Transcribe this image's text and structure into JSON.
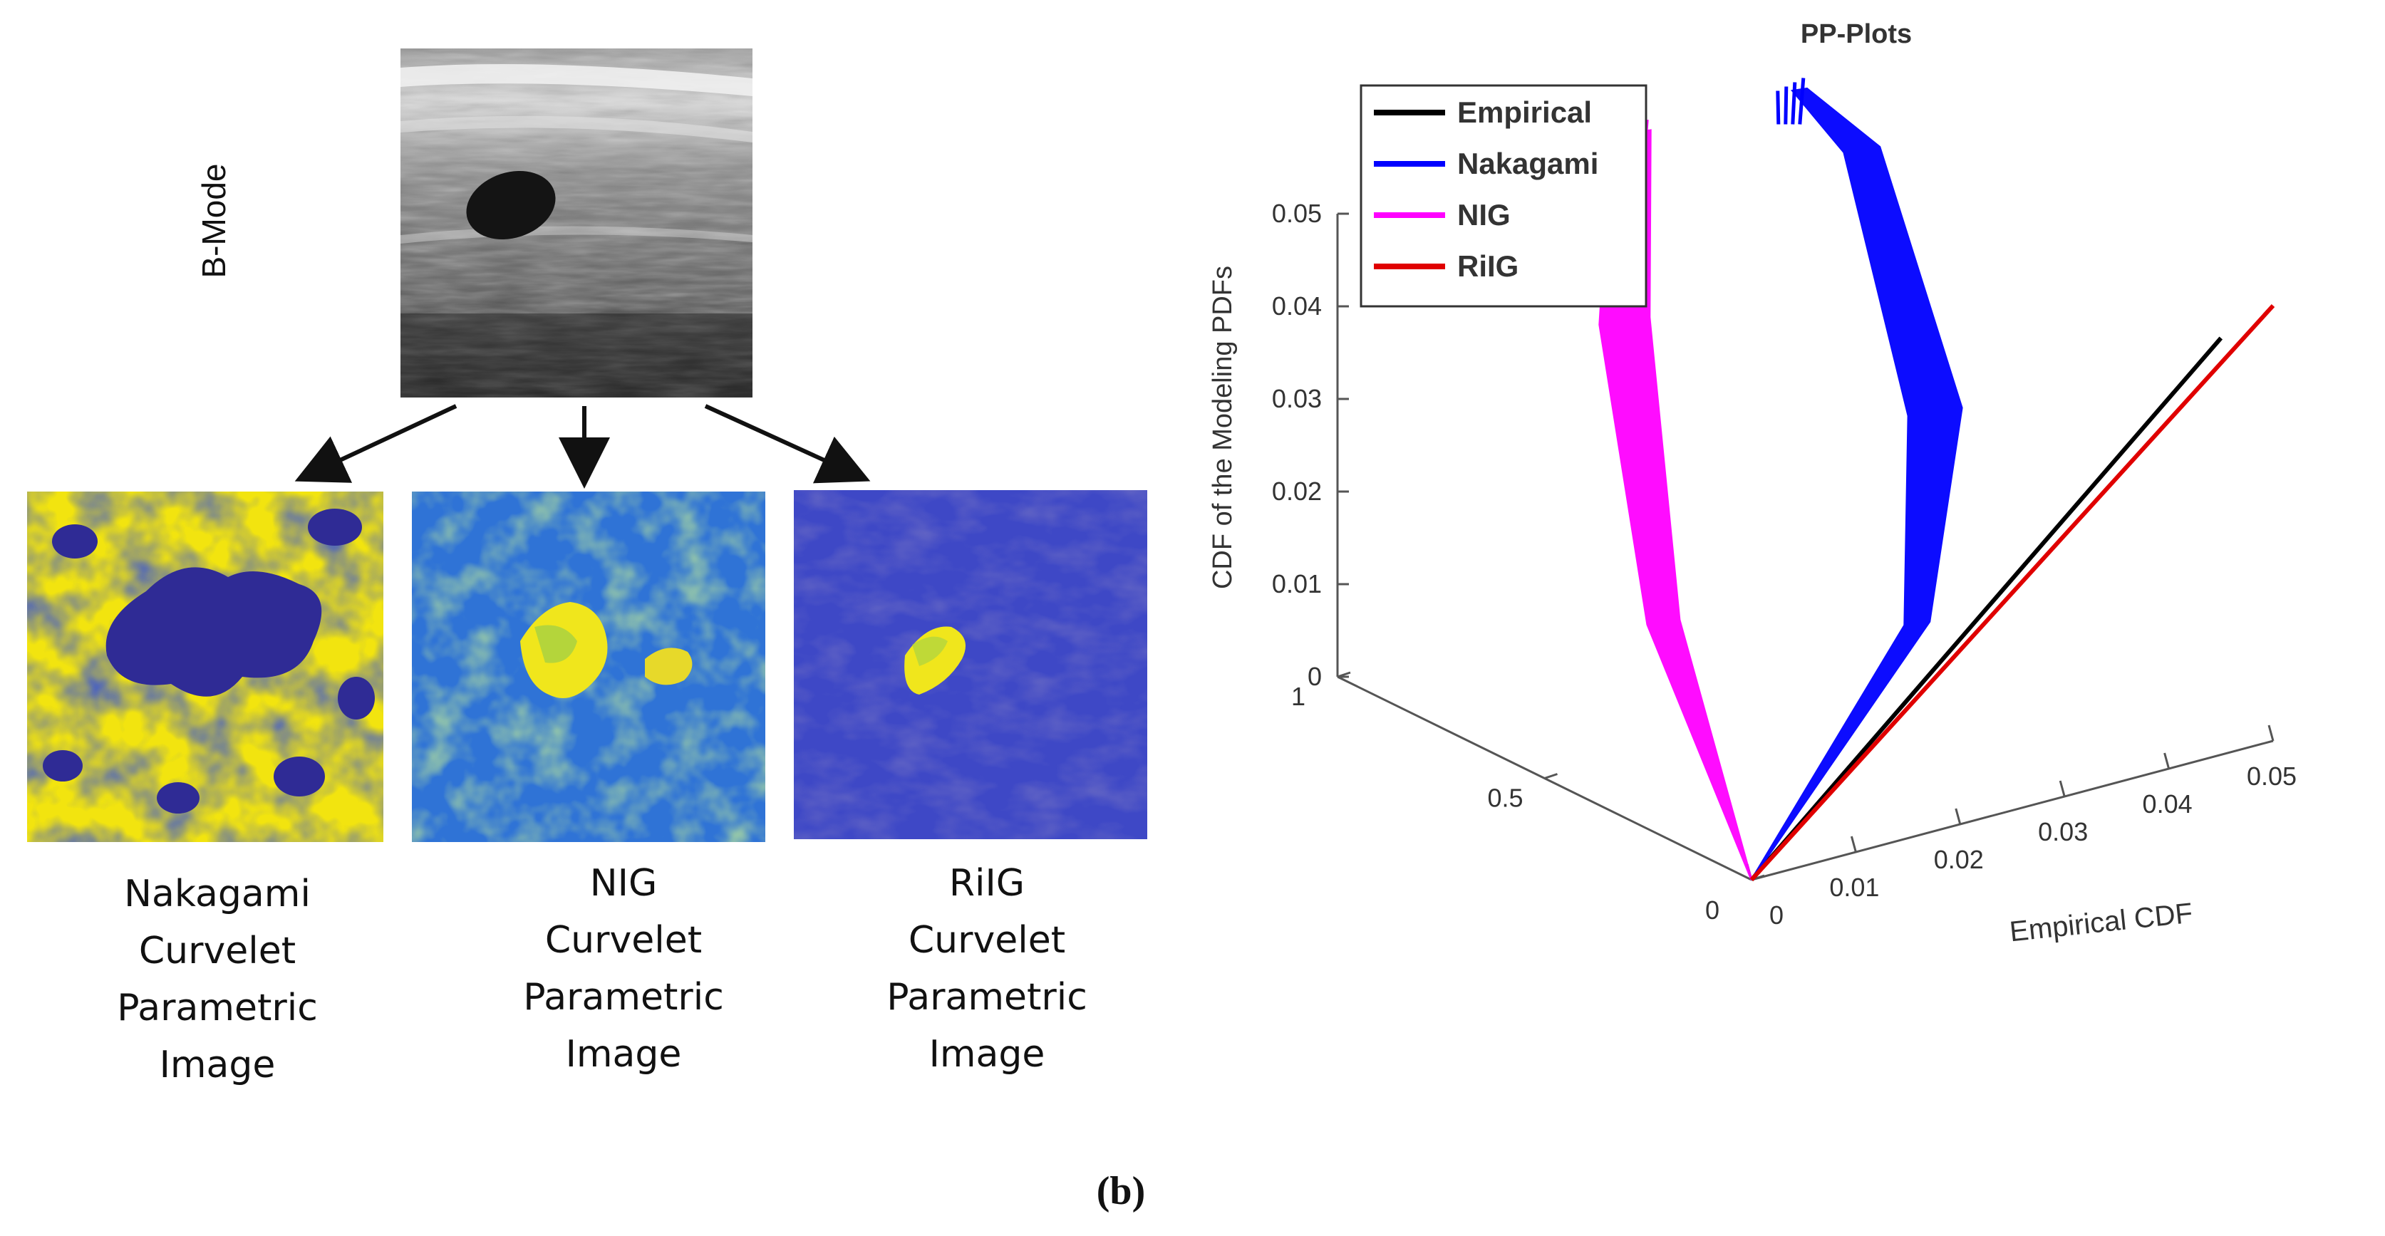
{
  "left_panel": {
    "bmode_label": "B-Mode",
    "images": [
      {
        "lines": [
          "Nakagami",
          "Curvelet",
          "Parametric",
          "Image"
        ]
      },
      {
        "lines": [
          "NIG",
          "Curvelet",
          "Parametric",
          "Image"
        ]
      },
      {
        "lines": [
          "RiIG",
          "Curvelet",
          "Parametric",
          "Image"
        ]
      }
    ]
  },
  "figure_caption": "(b)",
  "chart_data": {
    "type": "line",
    "view": "3d",
    "title": "PP-Plots",
    "xlabel": "Empirical CDF",
    "ylabel": "",
    "zlabel": "CDF of the Modeling PDFs",
    "xlim": [
      0,
      0.05
    ],
    "ylim": [
      0,
      1
    ],
    "zlim": [
      0,
      0.05
    ],
    "x_ticks": [
      "0",
      "0.01",
      "0.02",
      "0.03",
      "0.04",
      "0.05"
    ],
    "y_ticks": [
      "0",
      "0.5",
      "1"
    ],
    "z_ticks": [
      "0",
      "0.01",
      "0.02",
      "0.03",
      "0.04",
      "0.05"
    ],
    "legend_position": "top-left",
    "series": [
      {
        "name": "Empirical",
        "color": "#000000",
        "points": [
          [
            0,
            0,
            0
          ],
          [
            0.045,
            0,
            0.045
          ]
        ]
      },
      {
        "name": "Nakagami",
        "color": "#0000ff",
        "points": [
          [
            0,
            0,
            0
          ],
          [
            0.025,
            0.2,
            0.016
          ],
          [
            0.04,
            0.5,
            0.028
          ],
          [
            0.048,
            0.9,
            0.045
          ],
          [
            0.045,
            1.0,
            0.05
          ]
        ]
      },
      {
        "name": "NIG",
        "color": "#ff00ff",
        "points": [
          [
            0,
            0,
            0
          ],
          [
            0.005,
            0.3,
            0.02
          ],
          [
            0.018,
            0.7,
            0.04
          ],
          [
            0.03,
            1.0,
            0.05
          ]
        ]
      },
      {
        "name": "RiIG",
        "color": "#e00000",
        "points": [
          [
            0,
            0,
            0
          ],
          [
            0.05,
            0,
            0.047
          ]
        ]
      }
    ]
  }
}
